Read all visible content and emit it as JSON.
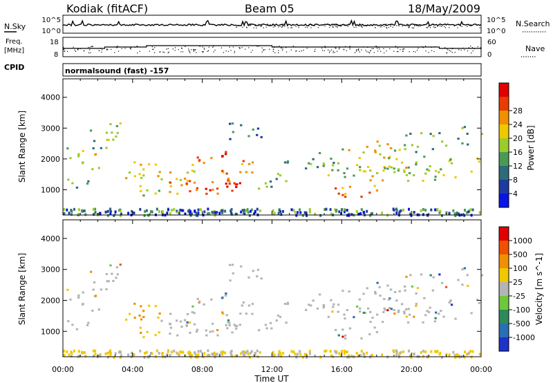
{
  "header": {
    "station": "Kodiak (fitACF)",
    "beam": "Beam 05",
    "date": "18/May/2009"
  },
  "noise_panel": {
    "left_label": "N.Sky",
    "right_label": "N.Search",
    "left_ticks": [
      "10^5",
      "10^0"
    ],
    "right_ticks": [
      "10^5",
      "10^0"
    ]
  },
  "freq_panel": {
    "left_label_1": "Freq.",
    "left_label_2": "[MHz]",
    "right_label": "Nave",
    "left_ticks": [
      "18",
      "8"
    ],
    "right_ticks": [
      "60",
      "0"
    ]
  },
  "cpid_panel": {
    "label": "CPID",
    "text": "normalsound (fast) -157"
  },
  "chart_data": [
    {
      "type": "heatmap",
      "name": "power",
      "xlabel": "Time UT",
      "ylabel": "Slant Range [km]",
      "x_ticks": [
        "00:00",
        "04:00",
        "08:00",
        "12:00",
        "16:00",
        "20:00",
        "00:00"
      ],
      "y_ticks": [
        1000,
        2000,
        3000,
        4000
      ],
      "xlim_hours": [
        0,
        24
      ],
      "ylim_km": [
        180,
        4600
      ],
      "colorbar": {
        "label": "Power [dB]",
        "ticks": [
          "4",
          "8",
          "12",
          "16",
          "20",
          "24",
          "28"
        ],
        "colors": [
          "#0a14e6",
          "#1e3ca0",
          "#2e6b7a",
          "#4a9a56",
          "#9acc2c",
          "#f0c800",
          "#f09000",
          "#e83c00",
          "#e00000"
        ]
      }
    },
    {
      "type": "heatmap",
      "name": "velocity",
      "xlabel": "Time UT",
      "ylabel": "Slant Range [km]",
      "x_ticks": [
        "00:00",
        "04:00",
        "08:00",
        "12:00",
        "16:00",
        "20:00",
        "00:00"
      ],
      "y_ticks": [
        1000,
        2000,
        3000,
        4000
      ],
      "xlim_hours": [
        0,
        24
      ],
      "ylim_km": [
        180,
        4600
      ],
      "colorbar": {
        "label": "Velocity [m s^-1]",
        "ticks": [
          "1000",
          "500",
          "100",
          "25",
          "-25",
          "-100",
          "-500",
          "-1000"
        ],
        "colors": [
          "#1e32c8",
          "#2a6eb4",
          "#2e8a5a",
          "#6ec83c",
          "#b4b4b4",
          "#f0c800",
          "#f09000",
          "#f05000",
          "#e00000"
        ]
      }
    }
  ]
}
